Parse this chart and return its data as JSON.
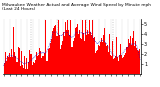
{
  "title": "Milwaukee Weather Actual and Average Wind Speed by Minute mph (Last 24 Hours)",
  "bar_color": "#ff0000",
  "line_color": "#0000cc",
  "background_color": "#ffffff",
  "plot_background": "#ffffff",
  "grid_color": "#888888",
  "n_points": 1440,
  "ylim": [
    0,
    5.5
  ],
  "yticks": [
    1,
    2,
    3,
    4,
    5
  ],
  "ylabel_fontsize": 3.5,
  "xlabel_fontsize": 2.8,
  "title_fontsize": 3.2,
  "line_width": 0.5,
  "seed": 99
}
